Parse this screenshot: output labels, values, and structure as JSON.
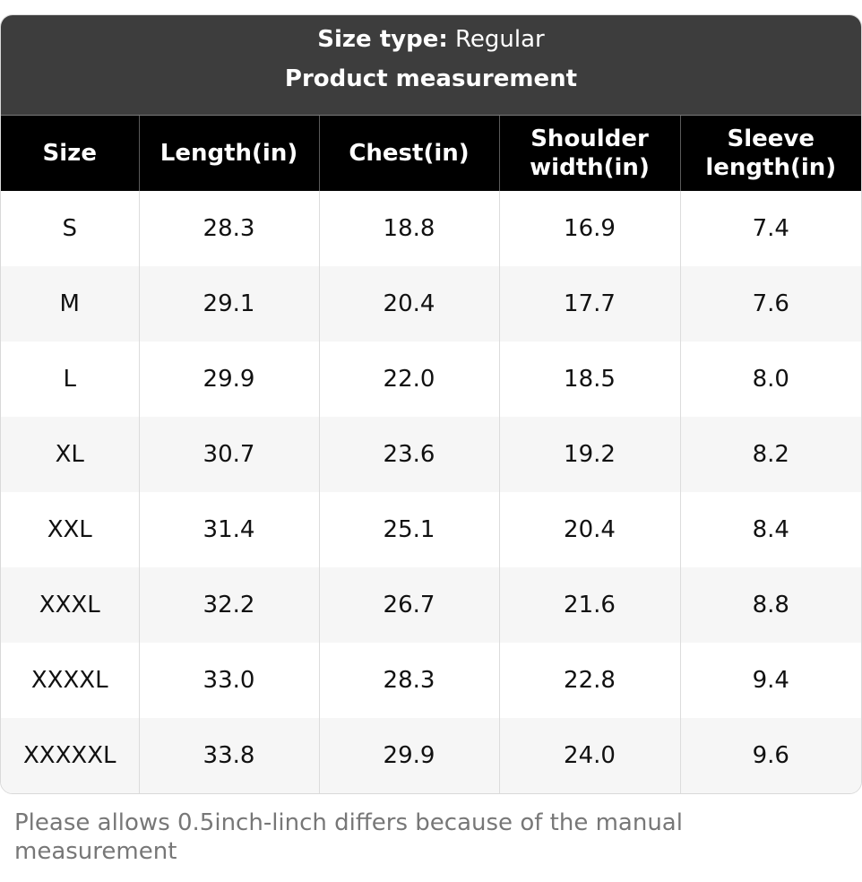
{
  "header": {
    "size_type_label": "Size type:",
    "size_type_value": "Regular",
    "title": "Product measurement"
  },
  "table": {
    "columns": [
      "Size",
      "Length(in)",
      "Chest(in)",
      "Shoulder width(in)",
      "Sleeve length(in)"
    ],
    "rows": [
      [
        "S",
        "28.3",
        "18.8",
        "16.9",
        "7.4"
      ],
      [
        "M",
        "29.1",
        "20.4",
        "17.7",
        "7.6"
      ],
      [
        "L",
        "29.9",
        "22.0",
        "18.5",
        "8.0"
      ],
      [
        "XL",
        "30.7",
        "23.6",
        "19.2",
        "8.2"
      ],
      [
        "XXL",
        "31.4",
        "25.1",
        "20.4",
        "8.4"
      ],
      [
        "XXXL",
        "32.2",
        "26.7",
        "21.6",
        "8.8"
      ],
      [
        "XXXXL",
        "33.0",
        "28.3",
        "22.8",
        "9.4"
      ],
      [
        "XXXXXL",
        "33.8",
        "29.9",
        "24.0",
        "9.6"
      ]
    ]
  },
  "note": "Please allows 0.5inch-linch differs because of the manual measurement",
  "colors": {
    "header_bg": "#3d3d3d",
    "column_header_bg": "#000000",
    "stripe_bg": "#f6f6f6",
    "note_text": "#777777"
  }
}
